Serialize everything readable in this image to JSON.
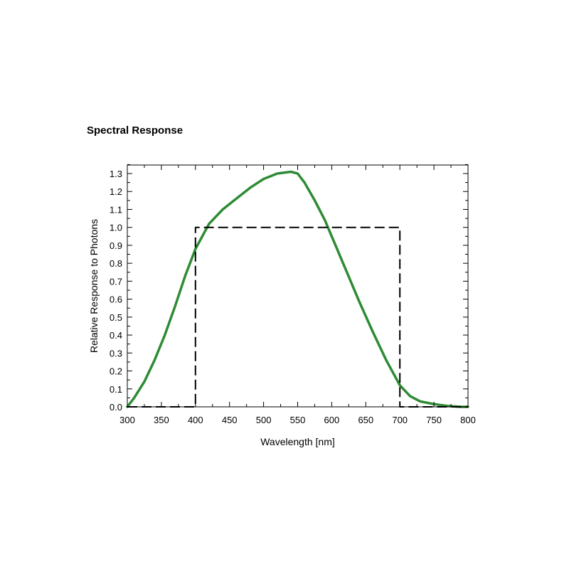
{
  "page": {
    "title": "Spectral Response"
  },
  "colors": {
    "response_curve": "#2e8b34",
    "ideal_band": "#000000",
    "frame": "#000000"
  },
  "chart_data": {
    "type": "line",
    "title": "Spectral Response",
    "xlabel": "Wavelength [nm]",
    "ylabel": "Relative Response to Photons",
    "xlim": [
      300,
      800
    ],
    "ylim": [
      0,
      1.35
    ],
    "x_ticks": [
      300,
      350,
      400,
      450,
      500,
      550,
      600,
      650,
      700,
      750,
      800
    ],
    "x_tick_labels": [
      "300",
      "350",
      "400",
      "450",
      "500",
      "550",
      "600",
      "650",
      "700",
      "750",
      "800"
    ],
    "y_ticks": [
      0,
      0.1,
      0.2,
      0.3,
      0.4,
      0.5,
      0.6,
      0.7,
      0.8,
      0.9,
      1.0,
      1.1,
      1.2,
      1.3
    ],
    "y_tick_labels": [
      "0.0",
      "0.1",
      "0.2",
      "0.3",
      "0.4",
      "0.5",
      "0.6",
      "0.7",
      "0.8",
      "0.9",
      "1.0",
      "1.1",
      "1.2",
      "1.3"
    ],
    "grid": false,
    "legend": "none",
    "series": [
      {
        "style": "solid",
        "color": "#2e8b34",
        "x": [
          300,
          310,
          325,
          340,
          355,
          370,
          385,
          400,
          420,
          440,
          460,
          480,
          500,
          520,
          540,
          550,
          560,
          575,
          590,
          600,
          620,
          640,
          660,
          680,
          700,
          715,
          730,
          750,
          770,
          790,
          800
        ],
        "y": [
          0.0,
          0.05,
          0.14,
          0.26,
          0.4,
          0.56,
          0.73,
          0.88,
          1.02,
          1.1,
          1.16,
          1.22,
          1.27,
          1.3,
          1.31,
          1.3,
          1.25,
          1.15,
          1.04,
          0.95,
          0.77,
          0.59,
          0.42,
          0.26,
          0.12,
          0.06,
          0.03,
          0.015,
          0.005,
          0.0,
          0.0
        ]
      },
      {
        "style": "dashed",
        "color": "#000000",
        "x": [
          300,
          400,
          400,
          700,
          700,
          800
        ],
        "y": [
          0.0,
          0.0,
          1.0,
          1.0,
          0.0,
          0.0
        ]
      }
    ]
  }
}
